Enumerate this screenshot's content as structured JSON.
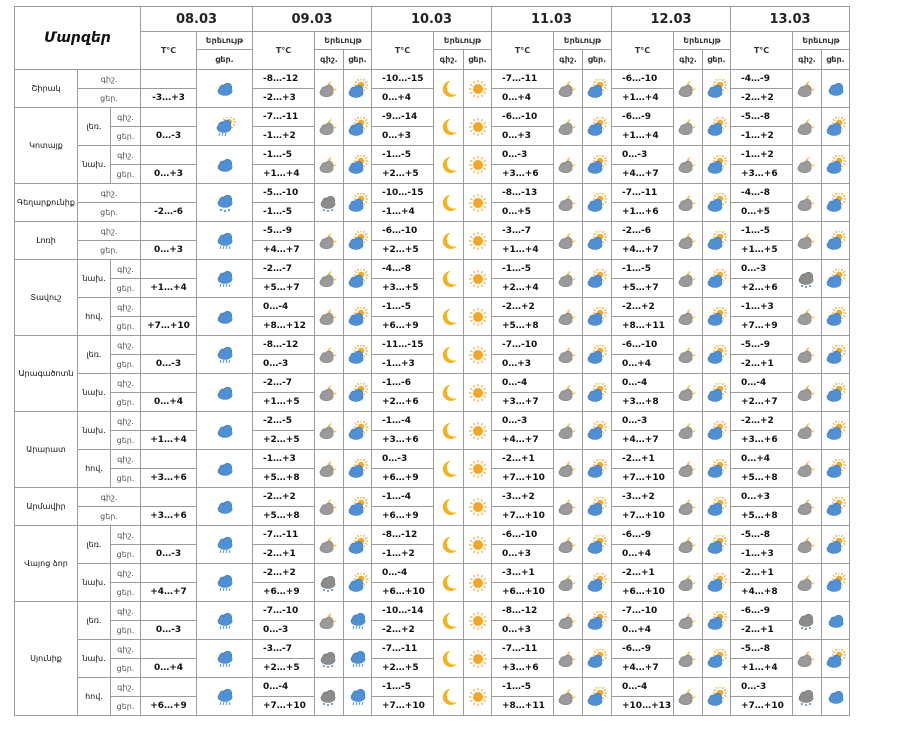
{
  "header": {
    "title": "Մարզեր",
    "dates": [
      "08.03",
      "09.03",
      "10.03",
      "11.03",
      "12.03",
      "13.03"
    ],
    "temp_label": "T°C",
    "phen_label": "Երեւույթ",
    "night": "գիշ.",
    "day": "ցեր."
  },
  "regions": [
    {
      "name": "Շիրակ",
      "subs": [
        {
          "sub": "",
          "n08": "",
          "d08": "-3…+3",
          "i08": "cloud",
          "n": [
            "-8…-12",
            "-10…-15",
            "-7…-11",
            "-6…-10",
            "-4…-9"
          ],
          "d": [
            "-2…+3",
            "0…+4",
            "0…+4",
            "+1…+4",
            "-2…+2"
          ],
          "ni": [
            "pcn",
            "moon",
            "pcn",
            "pcn",
            "pcn"
          ],
          "di": [
            "pcd",
            "sun",
            "pcd",
            "pcd",
            "cloud"
          ]
        }
      ]
    },
    {
      "name": "Կոտայք",
      "subs": [
        {
          "sub": "լեռ.",
          "n08": "",
          "d08": "0…-3",
          "i08": "rainsun",
          "n": [
            "-7…-11",
            "-9…-14",
            "-6…-10",
            "-6…-9",
            "-5…-8"
          ],
          "d": [
            "-1…+2",
            "0…+3",
            "0…+3",
            "+1…+4",
            "-1…+2"
          ],
          "ni": [
            "pcn",
            "moon",
            "pcn",
            "pcn",
            "pcn"
          ],
          "di": [
            "pcd",
            "sun",
            "pcd",
            "pcd",
            "pcd"
          ]
        },
        {
          "sub": "նախ.",
          "n08": "",
          "d08": "0…+3",
          "i08": "cloud",
          "n": [
            "-1…-5",
            "-1…-5",
            "0…-3",
            "0…-3",
            "-1…+2"
          ],
          "d": [
            "+1…+4",
            "+2…+5",
            "+3…+6",
            "+4…+7",
            "+3…+6"
          ],
          "ni": [
            "pcn",
            "moon",
            "pcn",
            "pcn",
            "pcn"
          ],
          "di": [
            "pcd",
            "sun",
            "pcd",
            "pcd",
            "pcd"
          ]
        }
      ]
    },
    {
      "name": "Գեղարքունիք",
      "subs": [
        {
          "sub": "",
          "n08": "",
          "d08": "-2…-6",
          "i08": "snow",
          "n": [
            "-5…-10",
            "-10…-15",
            "-8…-13",
            "-7…-11",
            "-4…-8"
          ],
          "d": [
            "-1…-5",
            "-1…+4",
            "0…+5",
            "+1…+6",
            "0…+5"
          ],
          "ni": [
            "snowcl",
            "moon",
            "pcn",
            "pcn",
            "pcn"
          ],
          "di": [
            "pcd",
            "sun",
            "pcd",
            "pcd",
            "pcd"
          ]
        }
      ]
    },
    {
      "name": "Լոռի",
      "subs": [
        {
          "sub": "",
          "n08": "",
          "d08": "0…+3",
          "i08": "rain",
          "n": [
            "-5…-9",
            "-6…-10",
            "-3…-7",
            "-2…-6",
            "-1…-5"
          ],
          "d": [
            "+4…+7",
            "+2…+5",
            "+1…+4",
            "+4…+7",
            "+1…+5"
          ],
          "ni": [
            "pcn",
            "moon",
            "pcn",
            "pcn",
            "pcn"
          ],
          "di": [
            "pcd",
            "sun",
            "pcd",
            "pcd",
            "pcd"
          ]
        }
      ]
    },
    {
      "name": "Տավուշ",
      "subs": [
        {
          "sub": "նախ.",
          "n08": "",
          "d08": "+1…+4",
          "i08": "rain",
          "n": [
            "-2…-7",
            "-4…-8",
            "-1…-5",
            "-1…-5",
            "0…-3"
          ],
          "d": [
            "+5…+7",
            "+3…+5",
            "+2…+4",
            "+5…+7",
            "+2…+6"
          ],
          "ni": [
            "pcn",
            "moon",
            "pcn",
            "pcn",
            "snowcl"
          ],
          "di": [
            "pcd",
            "sun",
            "pcd",
            "pcd",
            "pcd"
          ]
        },
        {
          "sub": "հով.",
          "n08": "",
          "d08": "+7…+10",
          "i08": "cloud",
          "n": [
            "0…-4",
            "-1…-5",
            "-2…+2",
            "-2…+2",
            "-1…+3"
          ],
          "d": [
            "+8…+12",
            "+6…+9",
            "+5…+8",
            "+8…+11",
            "+7…+9"
          ],
          "ni": [
            "pcn",
            "moon",
            "pcn",
            "pcn",
            "pcn"
          ],
          "di": [
            "pcd",
            "sun",
            "pcd",
            "pcd",
            "pcd"
          ]
        }
      ]
    },
    {
      "name": "Արագածոտն",
      "subs": [
        {
          "sub": "լեռ.",
          "n08": "",
          "d08": "0…-3",
          "i08": "rain",
          "n": [
            "-8…-12",
            "-11…-15",
            "-7…-10",
            "-6…-10",
            "-5…-9"
          ],
          "d": [
            "0…-3",
            "-1…+3",
            "0…+3",
            "0…+4",
            "-2…+1"
          ],
          "ni": [
            "pcn",
            "moon",
            "pcn",
            "pcn",
            "pcn"
          ],
          "di": [
            "pcd",
            "sun",
            "pcd",
            "pcd",
            "pcd"
          ]
        },
        {
          "sub": "նախ.",
          "n08": "",
          "d08": "0…+4",
          "i08": "cloud",
          "n": [
            "-2…-7",
            "-1…-6",
            "0…-4",
            "0…-4",
            "0…-4"
          ],
          "d": [
            "+1…+5",
            "+2…+6",
            "+3…+7",
            "+3…+8",
            "+2…+7"
          ],
          "ni": [
            "pcn",
            "moon",
            "pcn",
            "pcn",
            "pcn"
          ],
          "di": [
            "pcd",
            "sun",
            "pcd",
            "pcd",
            "pcd"
          ]
        }
      ]
    },
    {
      "name": "Արարատ",
      "subs": [
        {
          "sub": "նախ.",
          "n08": "",
          "d08": "+1…+4",
          "i08": "cloud",
          "n": [
            "-2…-5",
            "-1…-4",
            "0…-3",
            "0…-3",
            "-2…+2"
          ],
          "d": [
            "+2…+5",
            "+3…+6",
            "+4…+7",
            "+4…+7",
            "+3…+6"
          ],
          "ni": [
            "pcn",
            "moon",
            "pcn",
            "pcn",
            "pcn"
          ],
          "di": [
            "pcd",
            "sun",
            "pcd",
            "pcd",
            "pcd"
          ]
        },
        {
          "sub": "հով.",
          "n08": "",
          "d08": "+3…+6",
          "i08": "cloud",
          "n": [
            "-1…+3",
            "0…-3",
            "-2…+1",
            "-2…+1",
            "0…+4"
          ],
          "d": [
            "+5…+8",
            "+6…+9",
            "+7…+10",
            "+7…+10",
            "+5…+8"
          ],
          "ni": [
            "pcn",
            "moon",
            "pcn",
            "pcn",
            "pcn"
          ],
          "di": [
            "pcd",
            "sun",
            "pcd",
            "pcd",
            "pcd"
          ]
        }
      ]
    },
    {
      "name": "Արմավիր",
      "subs": [
        {
          "sub": "",
          "n08": "",
          "d08": "+3…+6",
          "i08": "cloud",
          "n": [
            "-2…+2",
            "-1…-4",
            "-3…+2",
            "-3…+2",
            "0…+3"
          ],
          "d": [
            "+5…+8",
            "+6…+9",
            "+7…+10",
            "+7…+10",
            "+5…+8"
          ],
          "ni": [
            "pcn",
            "moon",
            "pcn",
            "pcn",
            "pcn"
          ],
          "di": [
            "pcd",
            "sun",
            "pcd",
            "pcd",
            "pcd"
          ]
        }
      ]
    },
    {
      "name": "Վայոց ձոր",
      "subs": [
        {
          "sub": "լեռ.",
          "n08": "",
          "d08": "0…-3",
          "i08": "rain",
          "n": [
            "-7…-11",
            "-8…-12",
            "-6…-10",
            "-6…-9",
            "-5…-8"
          ],
          "d": [
            "-2…+1",
            "-1…+2",
            "0…+3",
            "0…+4",
            "-1…+3"
          ],
          "ni": [
            "pcn",
            "moon",
            "pcn",
            "pcn",
            "pcn"
          ],
          "di": [
            "pcd",
            "sun",
            "pcd",
            "pcd",
            "pcd"
          ]
        },
        {
          "sub": "նախ.",
          "n08": "",
          "d08": "+4…+7",
          "i08": "rain",
          "n": [
            "-2…+2",
            "0…-4",
            "-3…+1",
            "-2…+1",
            "-2…+1"
          ],
          "d": [
            "+6…+9",
            "+6…+10",
            "+6…+10",
            "+6…+10",
            "+4…+8"
          ],
          "ni": [
            "snowcl",
            "moon",
            "pcn",
            "pcn",
            "pcn"
          ],
          "di": [
            "pcd",
            "sun",
            "pcd",
            "pcd",
            "pcd"
          ]
        }
      ]
    },
    {
      "name": "Սյունիք",
      "subs": [
        {
          "sub": "լեռ.",
          "n08": "",
          "d08": "0…-3",
          "i08": "rain",
          "n": [
            "-7…-10",
            "-10…-14",
            "-8…-12",
            "-7…-10",
            "-6…-9"
          ],
          "d": [
            "0…-3",
            "-2…+2",
            "0…+3",
            "0…+4",
            "-2…+1"
          ],
          "ni": [
            "pcn",
            "moon",
            "pcn",
            "pcn",
            "snowcl"
          ],
          "di": [
            "rain",
            "sun",
            "pcd",
            "pcd",
            "cloud"
          ]
        },
        {
          "sub": "նախ.",
          "n08": "",
          "d08": "0…+4",
          "i08": "rain",
          "n": [
            "-3…-7",
            "-7…-11",
            "-7…-11",
            "-6…-9",
            "-5…-8"
          ],
          "d": [
            "+2…+5",
            "+2…+5",
            "+3…+6",
            "+4…+7",
            "+1…+4"
          ],
          "ni": [
            "snowcl",
            "moon",
            "pcn",
            "pcn",
            "pcn"
          ],
          "di": [
            "rain",
            "sun",
            "pcd",
            "pcd",
            "pcd"
          ]
        },
        {
          "sub": "հով.",
          "n08": "",
          "d08": "+6…+9",
          "i08": "rain",
          "n": [
            "0…-4",
            "-1…-5",
            "-1…-5",
            "0…-4",
            "0…-3"
          ],
          "d": [
            "+7…+10",
            "+7…+10",
            "+8…+11",
            "+10…+13",
            "+7…+10"
          ],
          "ni": [
            "snowcl",
            "moon",
            "pcn",
            "pcn",
            "snowcl"
          ],
          "di": [
            "rain",
            "sun",
            "pcd",
            "pcd",
            "cloud"
          ]
        }
      ]
    }
  ]
}
